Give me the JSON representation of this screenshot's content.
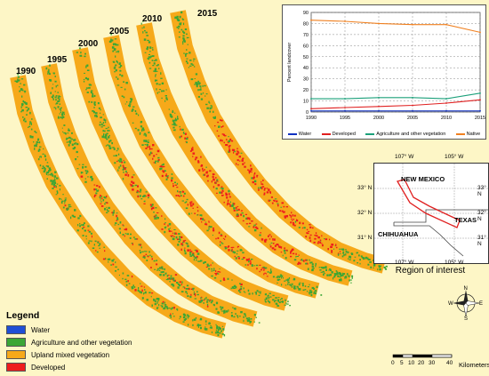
{
  "years": [
    "1990",
    "1995",
    "2000",
    "2005",
    "2010",
    "2015"
  ],
  "colors": {
    "background": "#fdf6c6",
    "water": "#1f4fd6",
    "vegetation": "#3ba635",
    "upland": "#f6a91a",
    "developed": "#ee1d1d",
    "native_line": "#f08020",
    "veg_line": "#1ba07a",
    "dev_line": "#e02020",
    "water_line": "#1030c0"
  },
  "legend": {
    "title": "Legend",
    "items": [
      {
        "label": "Water",
        "color": "#1f4fd6"
      },
      {
        "label": "Agriculture and other vegetation",
        "color": "#3ba635"
      },
      {
        "label": "Upland mixed vegetation",
        "color": "#f6a91a"
      },
      {
        "label": "Developed",
        "color": "#ee1d1d"
      }
    ]
  },
  "chart_data": {
    "type": "line",
    "title": "",
    "xlabel": "",
    "ylabel": "Percent landcover",
    "x": [
      1990,
      1995,
      2000,
      2005,
      2010,
      2015
    ],
    "xlim": [
      1990,
      2015
    ],
    "ylim": [
      0,
      90
    ],
    "xticks": [
      "1990",
      "1995",
      "2000",
      "2005",
      "2010",
      "2015"
    ],
    "yticks": [
      "0",
      "10",
      "20",
      "30",
      "40",
      "50",
      "60",
      "70",
      "80",
      "90"
    ],
    "grid": true,
    "legend_position": "bottom",
    "series": [
      {
        "name": "Water",
        "color": "#1030c0",
        "values": [
          1,
          1,
          1,
          1,
          1,
          1
        ]
      },
      {
        "name": "Developed",
        "color": "#e02020",
        "values": [
          3,
          4,
          5,
          6,
          8,
          11
        ]
      },
      {
        "name": "Agriculture and other vegetation",
        "color": "#1ba07a",
        "values": [
          12,
          12,
          13,
          13,
          12,
          17
        ]
      },
      {
        "name": "Native",
        "color": "#f08020",
        "values": [
          83,
          82,
          80,
          79,
          79,
          72
        ]
      }
    ]
  },
  "region_map": {
    "caption": "Region of interest",
    "labels": {
      "new_mexico": "NEW MEXICO",
      "texas": "TEXAS",
      "chihuahua": "CHIHUAHUA"
    },
    "top_lon": [
      "107° W",
      "105° W"
    ],
    "bottom_lon": [
      "107° W",
      "105° W"
    ],
    "left_lat": [
      "33° N",
      "32° N",
      "31° N"
    ],
    "right_lat": [
      "33° N",
      "32° N",
      "31° N"
    ]
  },
  "compass": {
    "n": "N",
    "s": "S",
    "e": "E",
    "w": "W"
  },
  "scale_bar": {
    "ticks": [
      "0",
      "5",
      "10",
      "20",
      "30",
      "40"
    ],
    "unit": "Kilometers"
  }
}
